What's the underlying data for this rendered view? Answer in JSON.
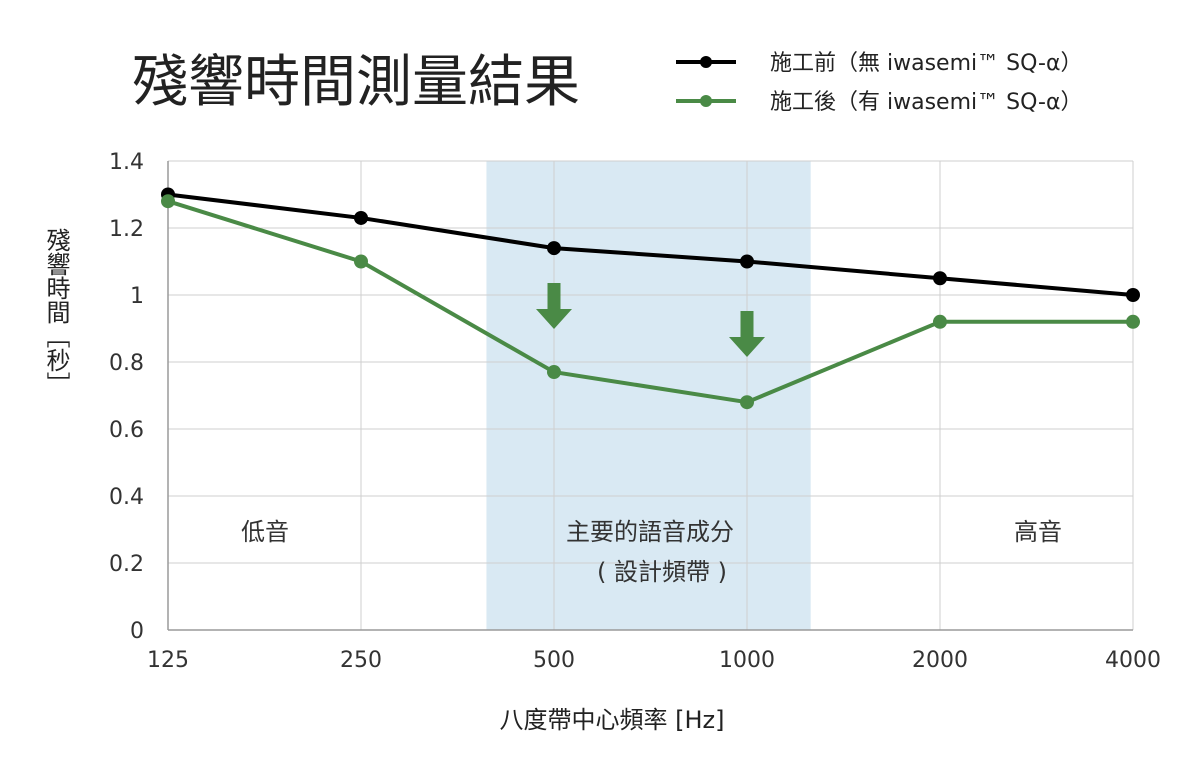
{
  "chart_data": {
    "type": "line",
    "title": "殘響時間測量結果",
    "xlabel": "八度帶中心頻率 [Hz]",
    "ylabel": "殘響時間［秒］",
    "categories": [
      "125",
      "250",
      "500",
      "1000",
      "2000",
      "4000"
    ],
    "yticks": [
      "0",
      "0.2",
      "0.4",
      "0.6",
      "0.8",
      "1",
      "1.2",
      "1.4"
    ],
    "ylim": [
      0,
      1.4
    ],
    "grid": true,
    "legend_position": "top-right",
    "series": [
      {
        "name": "施工前（無 iwasemi™ SQ-α）",
        "color": "#000000",
        "values": [
          1.3,
          1.23,
          1.14,
          1.1,
          1.05,
          1.0
        ]
      },
      {
        "name": "施工後（有 iwasemi™ SQ-α）",
        "color": "#4a8a46",
        "values": [
          1.28,
          1.1,
          0.77,
          0.68,
          0.92,
          0.92
        ]
      }
    ],
    "highlight_band": {
      "from_category": "500",
      "to_category": "1000",
      "color": "#d9e9f3"
    },
    "annotations": {
      "low_label": "低音",
      "speech_label_line1": "主要的語音成分",
      "speech_label_line2": "( 設計頻帶 )",
      "high_label": "高音"
    },
    "arrow_color": "#4a8a46"
  }
}
